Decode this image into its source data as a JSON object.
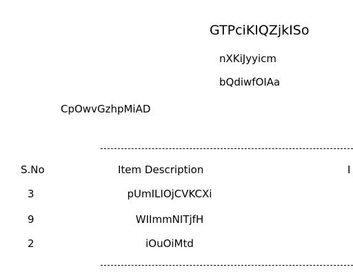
{
  "header": {
    "title": "GTPciKIQZjkISo",
    "line1": "nXKiJyyicm",
    "line2": "bQdiwfOIAa",
    "left_text": "CpOwvGzhpMiAD"
  },
  "table": {
    "columns": [
      "S.No",
      "Item Description",
      "I"
    ],
    "rows": [
      {
        "sno": "3",
        "description": "pUmILIOjCVKCXi"
      },
      {
        "sno": "9",
        "description": "WIImmNITjfH"
      },
      {
        "sno": "2",
        "description": "iOuOiMtd"
      }
    ]
  }
}
